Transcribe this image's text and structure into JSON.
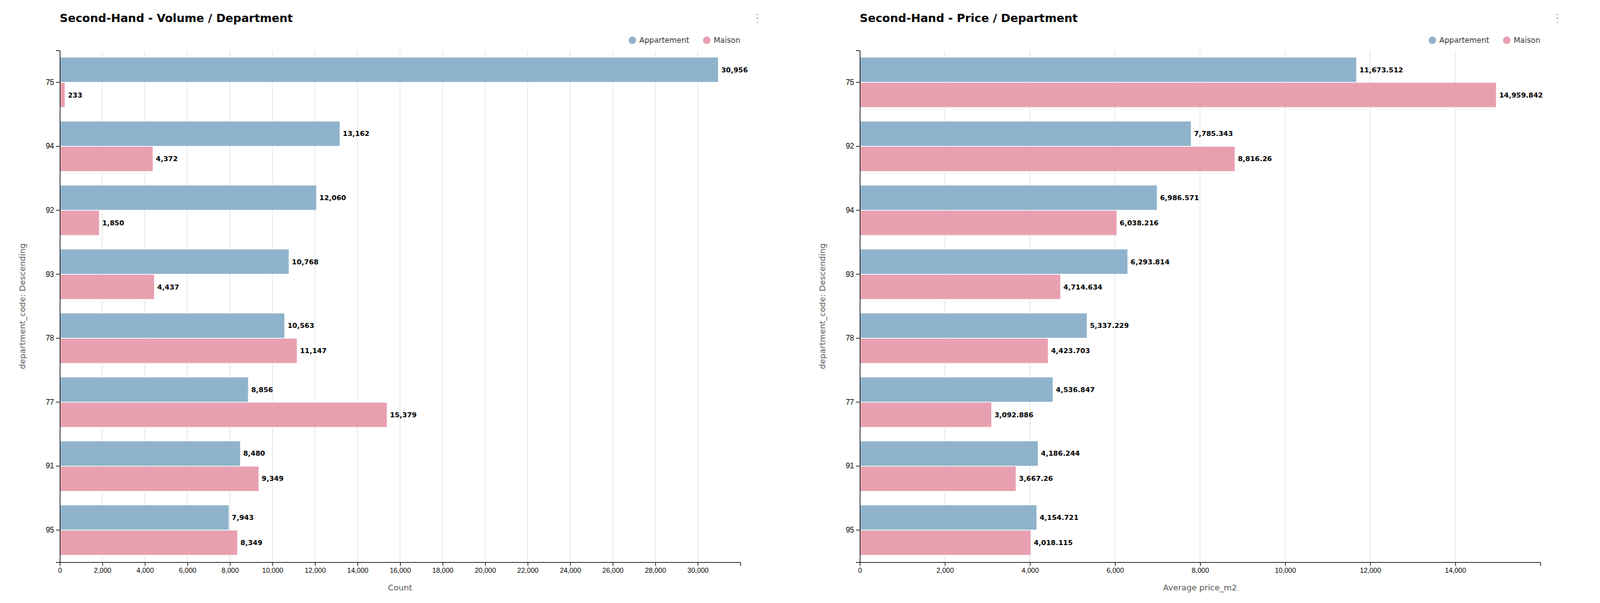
{
  "chart_data": [
    {
      "type": "bar",
      "orientation": "horizontal",
      "title": "Second-Hand - Volume / Department",
      "xlabel": "Count",
      "ylabel": "department_code: Descending",
      "categories": [
        "75",
        "94",
        "92",
        "93",
        "78",
        "77",
        "91",
        "95"
      ],
      "series": [
        {
          "name": "Appartement",
          "color": "#8fb3cc",
          "values": [
            30956,
            13162,
            12060,
            10768,
            10563,
            8856,
            8480,
            7943
          ],
          "value_labels": [
            "30,956",
            "13,162",
            "12,060",
            "10,768",
            "10,563",
            "8,856",
            "8,480",
            "7,943"
          ]
        },
        {
          "name": "Maison",
          "color": "#e8a0b0",
          "values": [
            233,
            4372,
            1850,
            4437,
            11147,
            15379,
            9349,
            8349
          ],
          "value_labels": [
            "233",
            "4,372",
            "1,850",
            "4,437",
            "11,147",
            "15,379",
            "9,349",
            "8,349"
          ]
        }
      ],
      "xlim": [
        0,
        32000
      ],
      "xticks": [
        0,
        {
          "value": 2000,
          "label": "2,000"
        },
        {
          "value": 4000,
          "label": "4,000"
        },
        {
          "value": 6000,
          "label": "6,000"
        },
        {
          "value": 8000,
          "label": "8,000"
        },
        {
          "value": 10000,
          "label": "10,000"
        },
        {
          "value": 12000,
          "label": "12,000"
        },
        {
          "value": 14000,
          "label": "14,000"
        },
        {
          "value": 16000,
          "label": "16,000"
        },
        {
          "value": 18000,
          "label": "18,000"
        },
        {
          "value": 20000,
          "label": "20,000"
        },
        {
          "value": 22000,
          "label": "22,000"
        },
        {
          "value": 24000,
          "label": "24,000"
        },
        {
          "value": 26000,
          "label": "26,000"
        },
        {
          "value": 28000,
          "label": "28,000"
        },
        {
          "value": 30000,
          "label": "30,000"
        }
      ],
      "grid": true,
      "legend": "upper right",
      "data_labels": true,
      "annotations": [
        "⋮"
      ]
    },
    {
      "type": "bar",
      "orientation": "horizontal",
      "title": "Second-Hand - Price / Department",
      "xlabel": "Average price_m2",
      "ylabel": "department_code: Descending",
      "categories": [
        "75",
        "92",
        "94",
        "93",
        "78",
        "77",
        "91",
        "95"
      ],
      "series": [
        {
          "name": "Appartement",
          "color": "#8fb3cc",
          "values": [
            11673.512,
            7785.343,
            6986.571,
            6293.814,
            5337.229,
            4536.847,
            4186.244,
            4154.721
          ],
          "value_labels": [
            "11,673.512",
            "7,785.343",
            "6,986.571",
            "6,293.814",
            "5,337.229",
            "4,536.847",
            "4,186.244",
            "4,154.721"
          ]
        },
        {
          "name": "Maison",
          "color": "#e8a0b0",
          "values": [
            14959.842,
            8816.26,
            6038.216,
            4714.634,
            4423.703,
            3092.886,
            3667.26,
            4018.115
          ],
          "value_labels": [
            "14,959.842",
            "8,816.26",
            "6,038.216",
            "4,714.634",
            "4,423.703",
            "3,092.886",
            "3,667.26",
            "4,018.115"
          ]
        }
      ],
      "xlim": [
        0,
        16000
      ],
      "xticks": [
        0,
        {
          "value": 2000,
          "label": "2,000"
        },
        {
          "value": 4000,
          "label": "4,000"
        },
        {
          "value": 6000,
          "label": "6,000"
        },
        {
          "value": 8000,
          "label": "8,000"
        },
        {
          "value": 10000,
          "label": "10,000"
        },
        {
          "value": 12000,
          "label": "12,000"
        },
        {
          "value": 14000,
          "label": "14,000"
        }
      ],
      "grid": true,
      "legend": "upper right",
      "data_labels": true,
      "annotations": [
        "⋮"
      ]
    }
  ]
}
